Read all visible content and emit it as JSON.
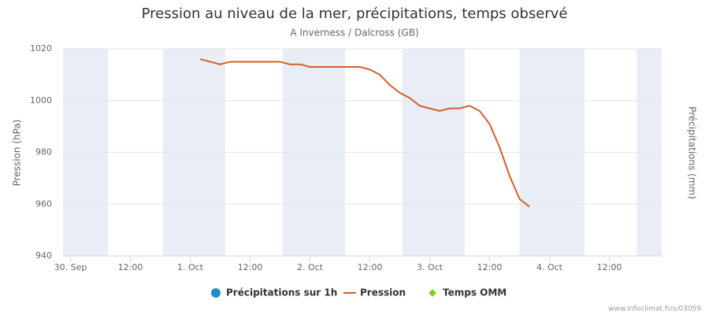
{
  "chart_data": {
    "type": "line",
    "title": "Pression au niveau de la mer, précipitations, temps observé",
    "subtitle": "A Inverness / Dalcross (GB)",
    "y_label": "Pression (hPa)",
    "y2_label": "Précipitations (mm)",
    "credit": "www.infoclimat.fr/s/03059",
    "xlim": [
      -1.5,
      118.5
    ],
    "xticks": [
      {
        "value": 0,
        "label": "30. Sep"
      },
      {
        "value": 12,
        "label": "12:00"
      },
      {
        "value": 24,
        "label": "1. Oct"
      },
      {
        "value": 36,
        "label": "12:00"
      },
      {
        "value": 48,
        "label": "2. Oct"
      },
      {
        "value": 60,
        "label": "12:00"
      },
      {
        "value": 72,
        "label": "3. Oct"
      },
      {
        "value": 84,
        "label": "12:00"
      },
      {
        "value": 96,
        "label": "4. Oct"
      },
      {
        "value": 108,
        "label": "12:00"
      }
    ],
    "ylim": [
      940,
      1020
    ],
    "yticks": [
      940,
      960,
      980,
      1000,
      1020
    ],
    "grid": true,
    "band_color": "#e9edf6",
    "bands": [
      [
        -1.5,
        7.5
      ],
      [
        18.5,
        31
      ],
      [
        42.5,
        55
      ],
      [
        66.5,
        79
      ],
      [
        90,
        103
      ],
      [
        113.5,
        118.5
      ]
    ],
    "series": [
      {
        "name": "Précipitations sur 1h",
        "color": "#1b8ec5",
        "marker": "circle",
        "values": []
      },
      {
        "name": "Pression",
        "color": "#d0602a",
        "marker": "line",
        "x": [
          26,
          28,
          30,
          32,
          34,
          36,
          38,
          40,
          42,
          44,
          46,
          48,
          50,
          52,
          54,
          56,
          58,
          60,
          62,
          64,
          66,
          68,
          70,
          72,
          74,
          76,
          78,
          80,
          82,
          84,
          86,
          88,
          90,
          92
        ],
        "values": [
          1016,
          1015,
          1014,
          1015,
          1015,
          1015,
          1015,
          1015,
          1015,
          1014,
          1014,
          1013,
          1013,
          1013,
          1013,
          1013,
          1013,
          1012,
          1010,
          1006,
          1003,
          1001,
          998,
          997,
          996,
          997,
          997,
          998,
          996,
          991,
          982,
          971,
          962,
          959
        ]
      },
      {
        "name": "Temps OMM",
        "color": "#7ed321",
        "marker": "diamond",
        "values": []
      }
    ]
  }
}
